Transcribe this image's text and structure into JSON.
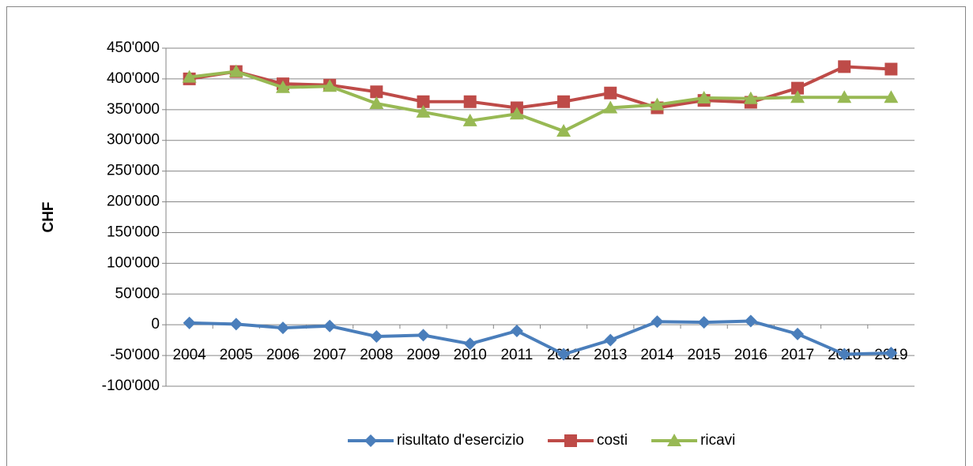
{
  "chart_data": {
    "type": "line",
    "y_label": "CHF",
    "categories": [
      "2004",
      "2005",
      "2006",
      "2007",
      "2008",
      "2009",
      "2010",
      "2011",
      "2012",
      "2013",
      "2014",
      "2015",
      "2016",
      "2017",
      "2018",
      "2019"
    ],
    "series": [
      {
        "name": "risultato d'esercizio",
        "color": "#4a7ebb",
        "marker": "diamond",
        "values": [
          3000,
          1000,
          -5000,
          -2000,
          -19000,
          -17000,
          -31000,
          -10000,
          -48000,
          -25000,
          5000,
          4000,
          6000,
          -15000,
          -48000,
          -46000
        ]
      },
      {
        "name": "costi",
        "color": "#be4b48",
        "marker": "square",
        "values": [
          400000,
          412000,
          392000,
          390000,
          379000,
          363000,
          363000,
          353000,
          363000,
          377000,
          353000,
          365000,
          362000,
          385000,
          420000,
          416000
        ]
      },
      {
        "name": "ricavi",
        "color": "#98b954",
        "marker": "triangle",
        "values": [
          403000,
          412000,
          386000,
          388000,
          360000,
          346000,
          332000,
          343000,
          315000,
          353000,
          358000,
          369000,
          368000,
          370000,
          370000,
          370000
        ]
      }
    ],
    "ylim": [
      -100000,
      450000
    ],
    "yticks": [
      {
        "value": -100000,
        "label": "-100'000"
      },
      {
        "value": -50000,
        "label": "-50'000"
      },
      0,
      {
        "value": 50000,
        "label": "50'000"
      },
      {
        "value": 100000,
        "label": "100'000"
      },
      {
        "value": 150000,
        "label": "150'000"
      },
      {
        "value": 200000,
        "label": "200'000"
      },
      {
        "value": 250000,
        "label": "250'000"
      },
      {
        "value": 300000,
        "label": "300'000"
      },
      {
        "value": 350000,
        "label": "350'000"
      },
      {
        "value": 400000,
        "label": "400'000"
      },
      {
        "value": 450000,
        "label": "450'000"
      }
    ],
    "grid": true,
    "legend": "bottom"
  }
}
